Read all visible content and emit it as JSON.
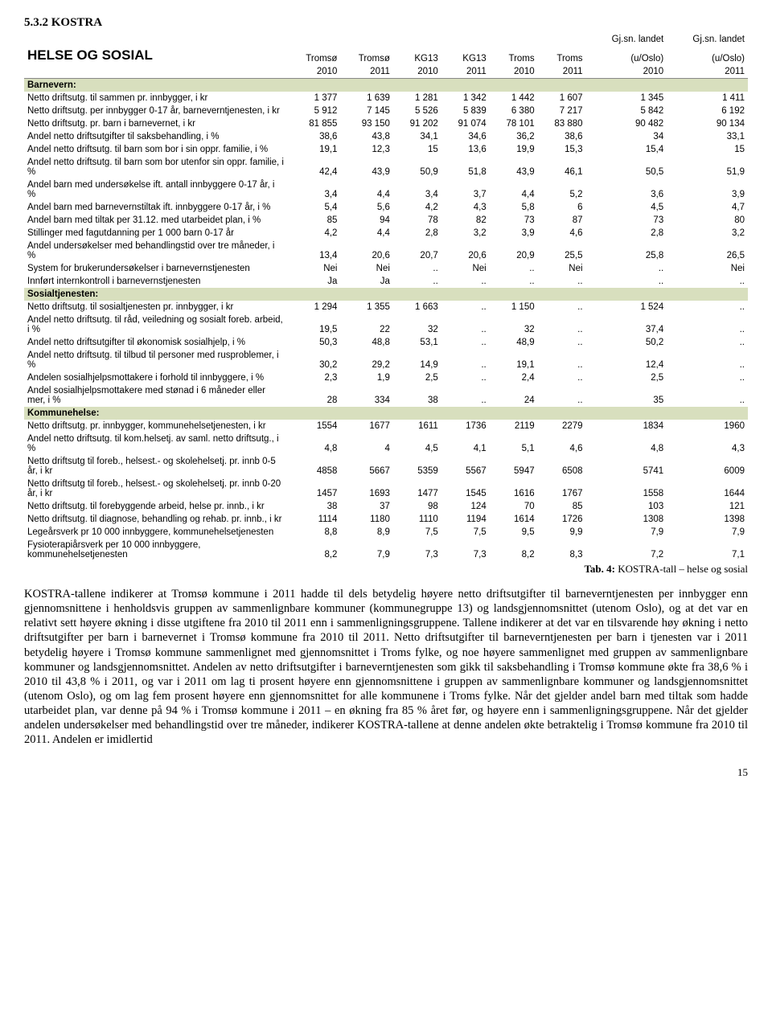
{
  "section_number": "5.3.2 KOSTRA",
  "table_title": "HELSE OG SOSIAL",
  "columns": [
    {
      "l1": "",
      "l2": "",
      "l3": ""
    },
    {
      "l1": "",
      "l2": "Tromsø",
      "l3": "2010"
    },
    {
      "l1": "",
      "l2": "Tromsø",
      "l3": "2011"
    },
    {
      "l1": "",
      "l2": "KG13",
      "l3": "2010"
    },
    {
      "l1": "",
      "l2": "KG13",
      "l3": "2011"
    },
    {
      "l1": "",
      "l2": "Troms",
      "l3": "2010"
    },
    {
      "l1": "",
      "l2": "Troms",
      "l3": "2011"
    },
    {
      "l1": "Gj.sn. landet",
      "l2": "(u/Oslo)",
      "l3": "2010"
    },
    {
      "l1": "Gj.sn. landet",
      "l2": "(u/Oslo)",
      "l3": "2011"
    }
  ],
  "groups": [
    {
      "label": "Barnevern:",
      "rows": [
        {
          "label": "Netto driftsutg. til sammen pr. innbygger, i kr",
          "v": [
            "1 377",
            "1 639",
            "1 281",
            "1 342",
            "1 442",
            "1 607",
            "1 345",
            "1 411"
          ]
        },
        {
          "label": "Netto driftsutg. per innbygger 0-17 år, barneverntjenesten, i kr",
          "v": [
            "5 912",
            "7 145",
            "5 526",
            "5 839",
            "6 380",
            "7 217",
            "5 842",
            "6 192"
          ]
        },
        {
          "label": "Netto driftsutg. pr. barn i barnevernet, i kr",
          "v": [
            "81 855",
            "93 150",
            "91 202",
            "91 074",
            "78 101",
            "83 880",
            "90 482",
            "90 134"
          ]
        },
        {
          "label": "Andel netto driftsutgifter til saksbehandling, i %",
          "v": [
            "38,6",
            "43,8",
            "34,1",
            "34,6",
            "36,2",
            "38,6",
            "34",
            "33,1"
          ]
        },
        {
          "label": "Andel netto driftsutg. til barn som bor i sin oppr. familie, i %",
          "v": [
            "19,1",
            "12,3",
            "15",
            "13,6",
            "19,9",
            "15,3",
            "15,4",
            "15"
          ]
        },
        {
          "label": "Andel netto driftsutg. til barn som bor utenfor sin oppr. familie, i %",
          "v": [
            "42,4",
            "43,9",
            "50,9",
            "51,8",
            "43,9",
            "46,1",
            "50,5",
            "51,9"
          ]
        },
        {
          "label": "Andel barn med undersøkelse ift. antall innbyggere 0-17 år, i %",
          "v": [
            "3,4",
            "4,4",
            "3,4",
            "3,7",
            "4,4",
            "5,2",
            "3,6",
            "3,9"
          ]
        },
        {
          "label": "Andel barn med barnevernstiltak ift. innbyggere 0-17 år, i %",
          "v": [
            "5,4",
            "5,6",
            "4,2",
            "4,3",
            "5,8",
            "6",
            "4,5",
            "4,7"
          ]
        },
        {
          "label": "Andel barn med tiltak per 31.12. med utarbeidet plan, i %",
          "v": [
            "85",
            "94",
            "78",
            "82",
            "73",
            "87",
            "73",
            "80"
          ]
        },
        {
          "label": "Stillinger med fagutdanning per 1 000 barn 0-17 år",
          "v": [
            "4,2",
            "4,4",
            "2,8",
            "3,2",
            "3,9",
            "4,6",
            "2,8",
            "3,2"
          ]
        },
        {
          "label": "Andel undersøkelser med behandlingstid over tre måneder, i %",
          "v": [
            "13,4",
            "20,6",
            "20,7",
            "20,6",
            "20,9",
            "25,5",
            "25,8",
            "26,5"
          ]
        },
        {
          "label": "System for brukerundersøkelser i barnevernstjenesten",
          "v": [
            "Nei",
            "Nei",
            "..",
            "Nei",
            "..",
            "Nei",
            "..",
            "Nei"
          ]
        },
        {
          "label": "Innført internkontroll i barnevernstjenesten",
          "v": [
            "Ja",
            "Ja",
            "..",
            "..",
            "..",
            "..",
            "..",
            ".."
          ]
        }
      ]
    },
    {
      "label": "Sosialtjenesten:",
      "rows": [
        {
          "label": "Netto driftsutg. til sosialtjenesten pr. innbygger, i kr",
          "v": [
            "1 294",
            "1 355",
            "1 663",
            "..",
            "1 150",
            "..",
            "1 524",
            ".."
          ]
        },
        {
          "label": "Andel netto driftsutg. til råd, veiledning og sosialt foreb. arbeid, i %",
          "v": [
            "19,5",
            "22",
            "32",
            "..",
            "32",
            "..",
            "37,4",
            ".."
          ]
        },
        {
          "label": "Andel netto driftsutgifter til økonomisk sosialhjelp, i %",
          "v": [
            "50,3",
            "48,8",
            "53,1",
            "..",
            "48,9",
            "..",
            "50,2",
            ".."
          ]
        },
        {
          "label": "Andel netto driftsutg. til tilbud til personer med rusproblemer, i %",
          "v": [
            "30,2",
            "29,2",
            "14,9",
            "..",
            "19,1",
            "..",
            "12,4",
            ".."
          ]
        },
        {
          "label": "Andelen sosialhjelpsmottakere i forhold til innbyggere, i %",
          "v": [
            "2,3",
            "1,9",
            "2,5",
            "..",
            "2,4",
            "..",
            "2,5",
            ".."
          ]
        },
        {
          "label": "Andel sosialhjelpsmottakere med stønad i 6 måneder eller mer, i %",
          "v": [
            "28",
            "334",
            "38",
            "..",
            "24",
            "..",
            "35",
            ".."
          ]
        }
      ]
    },
    {
      "label": "Kommunehelse:",
      "rows": [
        {
          "label": "Netto driftsutg. pr. innbygger, kommunehelsetjenesten, i kr",
          "v": [
            "1554",
            "1677",
            "1611",
            "1736",
            "2119",
            "2279",
            "1834",
            "1960"
          ]
        },
        {
          "label": "Andel netto driftsutg. til kom.helsetj. av saml. netto driftsutg., i %",
          "v": [
            "4,8",
            "4",
            "4,5",
            "4,1",
            "5,1",
            "4,6",
            "4,8",
            "4,3"
          ]
        },
        {
          "label": "Netto driftsutg til foreb., helsest.- og skolehelsetj. pr. innb 0-5 år, i kr",
          "v": [
            "4858",
            "5667",
            "5359",
            "5567",
            "5947",
            "6508",
            "5741",
            "6009"
          ]
        },
        {
          "label": "Netto driftsutg til foreb., helsest.- og skolehelsetj. pr. innb 0-20 år, i kr",
          "v": [
            "1457",
            "1693",
            "1477",
            "1545",
            "1616",
            "1767",
            "1558",
            "1644"
          ]
        },
        {
          "label": "Netto driftsutg. til forebyggende arbeid, helse pr. innb., i kr",
          "v": [
            "38",
            "37",
            "98",
            "124",
            "70",
            "85",
            "103",
            "121"
          ]
        },
        {
          "label": "Netto driftsutg. til diagnose, behandling og rehab. pr. innb., i kr",
          "v": [
            "1114",
            "1180",
            "1110",
            "1194",
            "1614",
            "1726",
            "1308",
            "1398"
          ]
        },
        {
          "label": "Legeårsverk pr 10 000 innbyggere, kommunehelsetjenesten",
          "v": [
            "8,8",
            "8,9",
            "7,5",
            "7,5",
            "9,5",
            "9,9",
            "7,9",
            "7,9"
          ]
        },
        {
          "label": "Fysioterapiårsverk per 10 000 innbyggere, kommunehelsetjenesten",
          "v": [
            "8,2",
            "7,9",
            "7,3",
            "7,3",
            "8,2",
            "8,3",
            "7,2",
            "7,1"
          ]
        }
      ]
    }
  ],
  "caption_bold": "Tab. 4:",
  "caption_rest": " KOSTRA-tall – helse og sosial",
  "paragraph": "KOSTRA-tallene indikerer at Tromsø kommune i 2011 hadde til dels betydelig høyere netto driftsutgifter til barneverntjenesten per innbygger enn gjennomsnittene i henholdsvis gruppen av sammenlignbare kommuner (kommunegruppe 13) og landsgjennomsnittet (utenom Oslo), og at det var en relativt sett høyere økning i disse utgiftene fra 2010 til 2011 enn i sammenligningsgruppene. Tallene indikerer at det var en tilsvarende høy økning i netto driftsutgifter per barn i barnevernet i Tromsø kommune fra 2010 til 2011. Netto driftsutgifter til barneverntjenesten per barn i tjenesten var i 2011 betydelig høyere i Tromsø kommune sammenlignet med gjennomsnittet i Troms fylke, og noe høyere sammenlignet med gruppen av sammenlignbare kommuner og landsgjennomsnittet. Andelen av netto driftsutgifter i barneverntjenesten som gikk til saksbehandling i Tromsø kommune økte fra 38,6 % i 2010 til 43,8 % i 2011, og var i 2011 om lag ti prosent høyere enn gjennomsnittene i gruppen av sammenlignbare kommuner og landsgjennomsnittet (utenom Oslo), og om lag fem prosent høyere enn gjennomsnittet for alle kommunene i Troms fylke. Når det gjelder andel barn med tiltak som hadde utarbeidet plan, var denne på 94 % i Tromsø kommune i 2011 – en økning fra 85 % året før, og høyere enn i sammenligningsgruppene. Når det gjelder andelen undersøkelser med behandlingstid over tre måneder, indikerer KOSTRA-tallene at denne andelen økte betraktelig i Tromsø kommune fra 2010 til 2011. Andelen er imidlertid",
  "page_number": "15"
}
